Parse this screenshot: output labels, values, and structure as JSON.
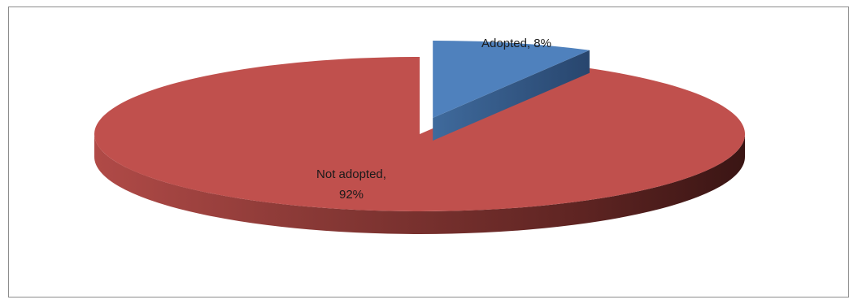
{
  "chart_data": {
    "type": "pie",
    "style": "3d-exploded",
    "slices": [
      {
        "name": "Adopted",
        "value": 8,
        "label": "Adopted, 8%",
        "color": "#4f81bd"
      },
      {
        "name": "Not adopted",
        "value": 92,
        "label_line1": "Not adopted,",
        "label_line2": "92%",
        "color": "#c0504d"
      }
    ],
    "legend": "none"
  }
}
